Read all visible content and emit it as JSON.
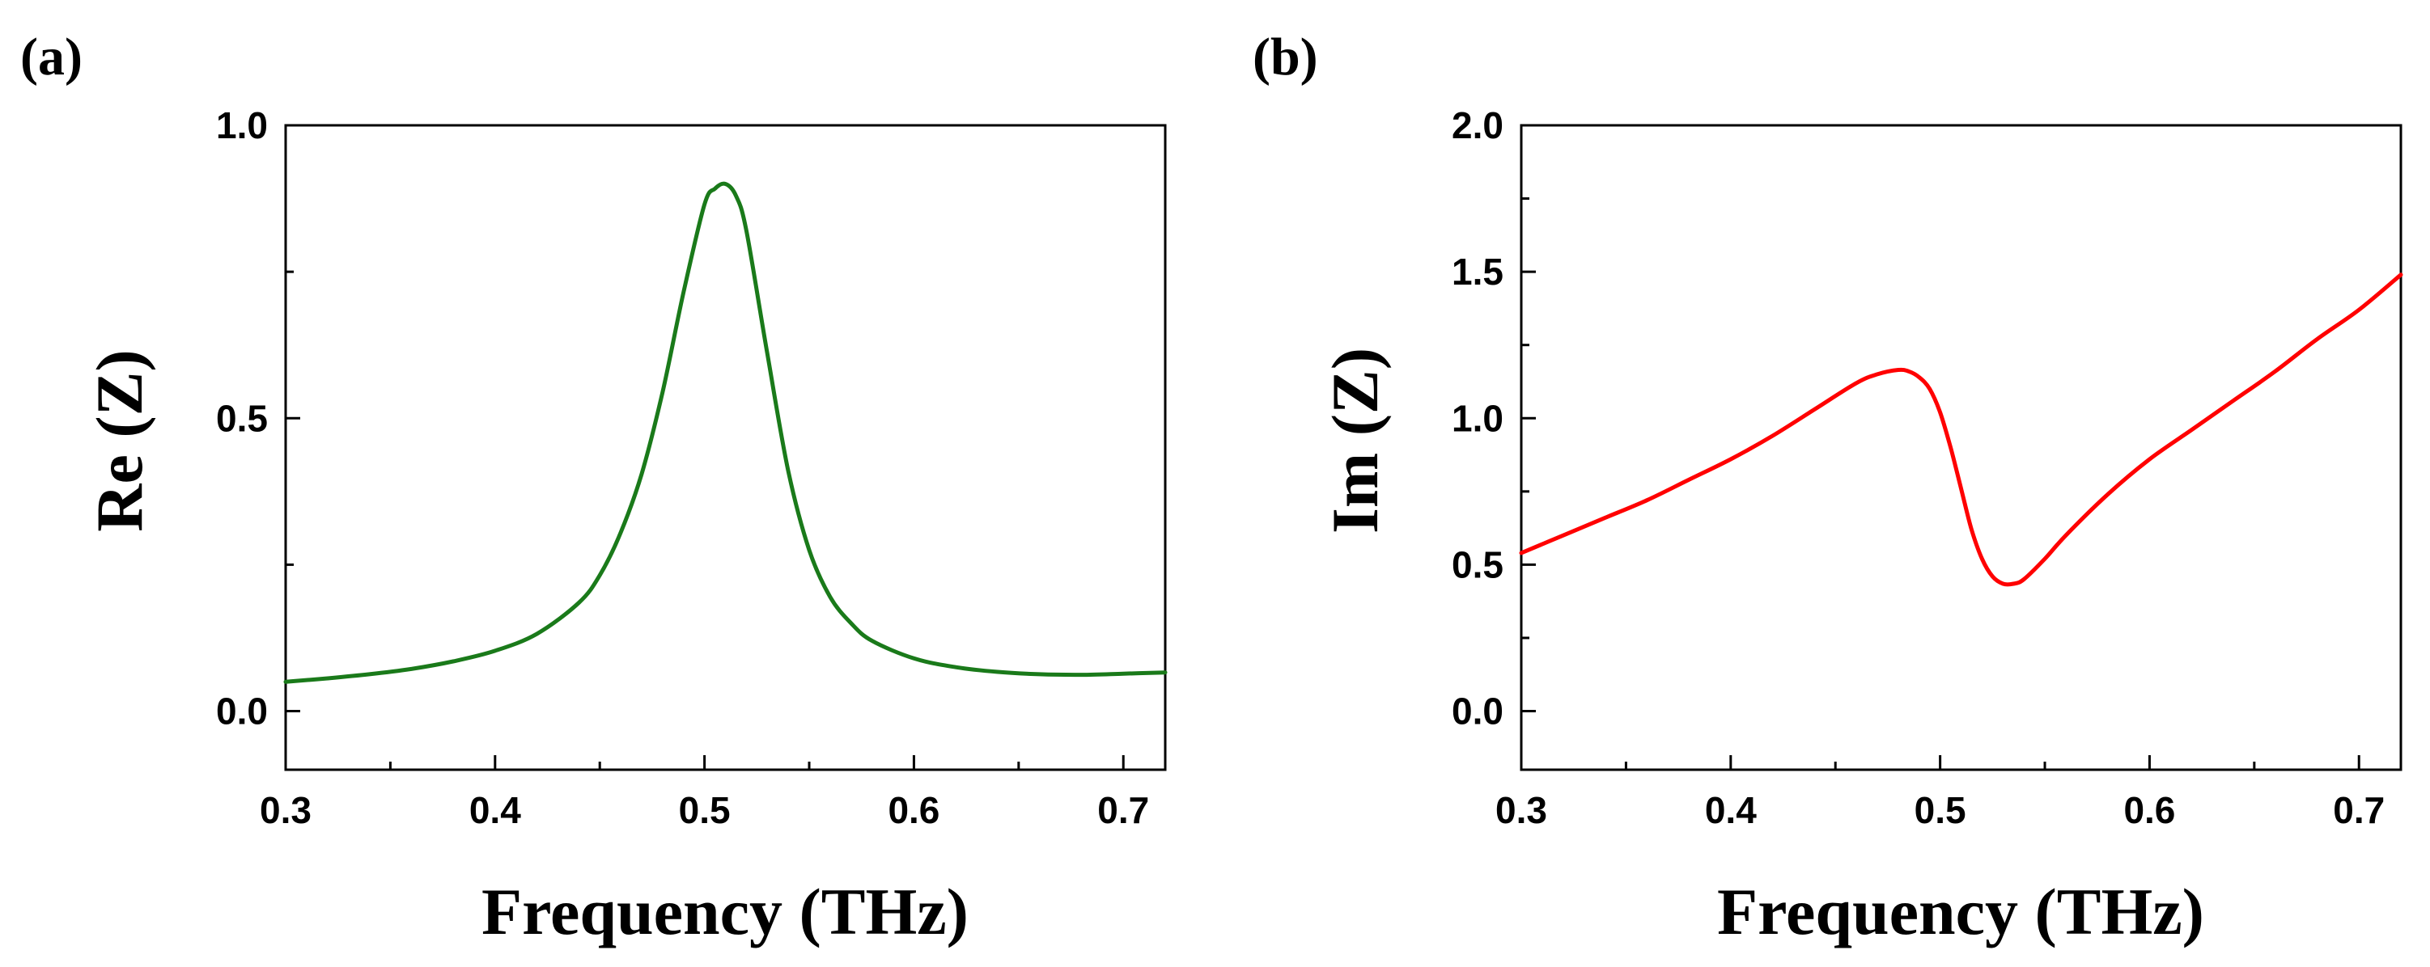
{
  "chart_data": [
    {
      "type": "line",
      "panel_label": "(a)",
      "xlabel": "Frequency (THz)",
      "ylabel": "Re (Z)",
      "xlim": [
        0.3,
        0.72
      ],
      "ylim": [
        -0.1,
        1.0
      ],
      "xticks": [
        0.3,
        0.4,
        0.5,
        0.6,
        0.7
      ],
      "xtick_labels": [
        "0.3",
        "0.4",
        "0.5",
        "0.6",
        "0.7"
      ],
      "xminor": [
        0.35,
        0.45,
        0.55,
        0.65
      ],
      "yticks": [
        0.0,
        0.5,
        1.0
      ],
      "ytick_labels": [
        "0.0",
        "0.5",
        "1.0"
      ],
      "yminor": [
        0.25,
        0.75
      ],
      "grid": false,
      "series": [
        {
          "name": "Re (Z)",
          "color": "#1a7a1a",
          "x": [
            0.3,
            0.32,
            0.34,
            0.36,
            0.38,
            0.4,
            0.42,
            0.44,
            0.45,
            0.46,
            0.47,
            0.48,
            0.49,
            0.5,
            0.505,
            0.51,
            0.515,
            0.52,
            0.53,
            0.54,
            0.55,
            0.56,
            0.57,
            0.58,
            0.6,
            0.62,
            0.64,
            0.66,
            0.68,
            0.7,
            0.72
          ],
          "y": [
            0.05,
            0.056,
            0.063,
            0.072,
            0.085,
            0.103,
            0.132,
            0.185,
            0.232,
            0.305,
            0.405,
            0.545,
            0.715,
            0.865,
            0.892,
            0.9,
            0.88,
            0.82,
            0.61,
            0.41,
            0.275,
            0.195,
            0.15,
            0.12,
            0.09,
            0.075,
            0.067,
            0.063,
            0.062,
            0.064,
            0.066
          ]
        }
      ]
    },
    {
      "type": "line",
      "panel_label": "(b)",
      "xlabel": "Frequency (THz)",
      "ylabel": "Im (Z)",
      "xlim": [
        0.3,
        0.72
      ],
      "ylim": [
        -0.2,
        2.0
      ],
      "xticks": [
        0.3,
        0.4,
        0.5,
        0.6,
        0.7
      ],
      "xtick_labels": [
        "0.3",
        "0.4",
        "0.5",
        "0.6",
        "0.7"
      ],
      "xminor": [
        0.35,
        0.45,
        0.55,
        0.65
      ],
      "yticks": [
        0.0,
        0.5,
        1.0,
        1.5,
        2.0
      ],
      "ytick_labels": [
        "0.0",
        "0.5",
        "1.0",
        "1.5",
        "2.0"
      ],
      "yminor": [
        -0.25,
        0.25,
        0.75,
        1.25,
        1.75
      ],
      "grid": false,
      "series": [
        {
          "name": "Im (Z)",
          "color": "#ff0000",
          "x": [
            0.3,
            0.32,
            0.34,
            0.36,
            0.38,
            0.4,
            0.42,
            0.44,
            0.46,
            0.47,
            0.48,
            0.485,
            0.49,
            0.495,
            0.5,
            0.505,
            0.51,
            0.515,
            0.52,
            0.525,
            0.53,
            0.535,
            0.54,
            0.55,
            0.56,
            0.58,
            0.6,
            0.62,
            0.64,
            0.66,
            0.68,
            0.7,
            0.72
          ],
          "y": [
            0.54,
            0.6,
            0.66,
            0.72,
            0.79,
            0.86,
            0.94,
            1.03,
            1.12,
            1.15,
            1.165,
            1.16,
            1.14,
            1.1,
            1.02,
            0.9,
            0.76,
            0.62,
            0.52,
            0.46,
            0.435,
            0.435,
            0.45,
            0.52,
            0.6,
            0.74,
            0.86,
            0.96,
            1.06,
            1.16,
            1.27,
            1.37,
            1.49
          ]
        }
      ]
    }
  ]
}
